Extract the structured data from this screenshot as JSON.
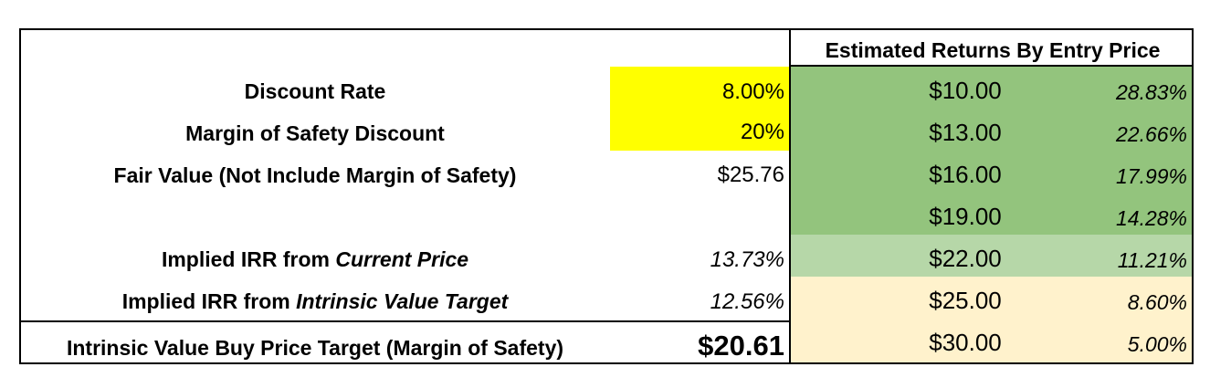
{
  "colors": {
    "yellow_input": "#ffff00",
    "green_dark": "#93c47d",
    "green_light": "#b6d7a8",
    "cream": "#fff2cc",
    "border": "#000000"
  },
  "left": {
    "discount_rate": {
      "label": "Discount Rate",
      "value": "8.00%"
    },
    "margin_of_safety": {
      "label": "Margin of Safety Discount",
      "value": "20%"
    },
    "fair_value": {
      "label": "Fair Value (Not Include Margin of Safety)",
      "value": "$25.76"
    },
    "irr_current": {
      "label_prefix": "Implied IRR from ",
      "label_em": "Current Price",
      "value": "13.73%"
    },
    "irr_intrinsic": {
      "label_prefix": "Implied IRR from ",
      "label_em": "Intrinsic Value Target",
      "value": "12.56%"
    },
    "buy_target": {
      "label": "Intrinsic Value Buy Price Target (Margin of Safety)",
      "value": "$20.61"
    }
  },
  "right": {
    "header": "Estimated Returns By Entry Price",
    "rows": [
      {
        "price": "$10.00",
        "ret": "28.83%",
        "shade": "green_dark"
      },
      {
        "price": "$13.00",
        "ret": "22.66%",
        "shade": "green_dark"
      },
      {
        "price": "$16.00",
        "ret": "17.99%",
        "shade": "green_dark"
      },
      {
        "price": "$19.00",
        "ret": "14.28%",
        "shade": "green_dark"
      },
      {
        "price": "$22.00",
        "ret": "11.21%",
        "shade": "green_light"
      },
      {
        "price": "$25.00",
        "ret": "8.60%",
        "shade": "cream"
      },
      {
        "price": "$30.00",
        "ret": "5.00%",
        "shade": "cream"
      }
    ]
  }
}
